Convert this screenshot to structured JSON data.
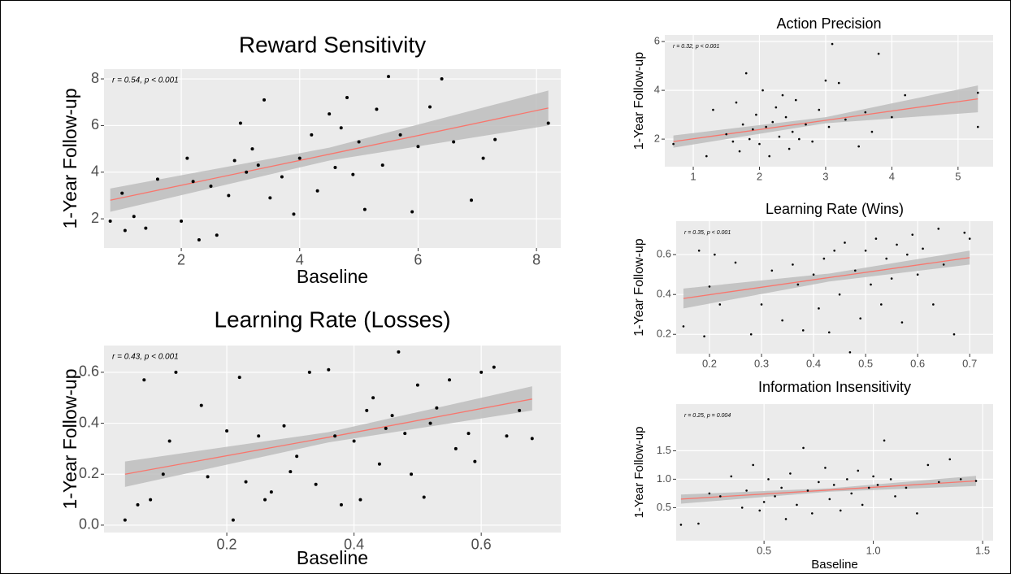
{
  "chart_data": [
    {
      "type": "scatter",
      "title": "Reward Sensitivity",
      "annotation": "r = 0.54, p < 0.001",
      "xlabel": "Baseline",
      "ylabel": "1-Year Follow-up",
      "x": [
        0.8,
        1.0,
        1.05,
        1.2,
        1.4,
        1.6,
        2.0,
        2.1,
        2.2,
        2.3,
        2.5,
        2.6,
        2.8,
        2.9,
        3.0,
        3.1,
        3.2,
        3.3,
        3.4,
        3.5,
        3.7,
        3.9,
        4.0,
        4.2,
        4.3,
        4.5,
        4.6,
        4.7,
        4.8,
        4.9,
        5.0,
        5.1,
        5.3,
        5.4,
        5.5,
        5.7,
        5.9,
        6.0,
        6.2,
        6.4,
        6.6,
        6.9,
        7.1,
        7.3,
        8.2
      ],
      "values": [
        1.9,
        3.1,
        1.5,
        2.1,
        1.6,
        3.7,
        1.9,
        4.6,
        3.6,
        1.1,
        3.4,
        1.3,
        3.0,
        4.5,
        6.1,
        4.0,
        5.0,
        4.3,
        7.1,
        2.9,
        3.8,
        2.2,
        4.6,
        5.6,
        3.2,
        6.5,
        4.2,
        5.9,
        7.2,
        3.9,
        5.3,
        2.4,
        6.7,
        4.3,
        8.1,
        5.6,
        2.3,
        5.1,
        6.8,
        8.0,
        5.3,
        2.8,
        4.6,
        5.4,
        6.1
      ],
      "fit": {
        "x": [
          0.8,
          4.5,
          8.2
        ],
        "values": [
          2.8,
          4.77,
          6.75
        ],
        "lower": [
          2.3,
          4.5,
          6.0
        ],
        "upper": [
          3.3,
          5.05,
          7.5
        ],
        "color": "#f8766d",
        "band_color": "#bdbdbd"
      },
      "color": "#000000",
      "xlim": [
        0.695,
        8.41
      ],
      "ylim": [
        0.75,
        8.42
      ],
      "xticks": [
        2,
        4,
        6,
        8
      ],
      "yticks": [
        2,
        4,
        6,
        8
      ],
      "grid": true
    },
    {
      "type": "scatter",
      "title": "Learning Rate (Losses)",
      "annotation": "r = 0.43, p < 0.001",
      "xlabel": "Baseline",
      "ylabel": "1-Year Follow-up",
      "x": [
        0.04,
        0.06,
        0.07,
        0.08,
        0.1,
        0.11,
        0.12,
        0.16,
        0.17,
        0.2,
        0.21,
        0.22,
        0.23,
        0.25,
        0.26,
        0.27,
        0.29,
        0.3,
        0.31,
        0.33,
        0.34,
        0.36,
        0.37,
        0.38,
        0.4,
        0.41,
        0.42,
        0.43,
        0.44,
        0.45,
        0.46,
        0.47,
        0.48,
        0.49,
        0.5,
        0.51,
        0.52,
        0.53,
        0.55,
        0.56,
        0.58,
        0.59,
        0.6,
        0.62,
        0.64,
        0.66,
        0.68
      ],
      "values": [
        0.02,
        0.08,
        0.57,
        0.1,
        0.2,
        0.33,
        0.6,
        0.47,
        0.19,
        0.37,
        0.02,
        0.58,
        0.17,
        0.35,
        0.1,
        0.13,
        0.39,
        0.21,
        0.27,
        0.6,
        0.16,
        0.61,
        0.35,
        0.08,
        0.33,
        0.1,
        0.45,
        0.5,
        0.24,
        0.38,
        0.43,
        0.68,
        0.36,
        0.2,
        0.55,
        0.11,
        0.4,
        0.46,
        0.57,
        0.3,
        0.36,
        0.25,
        0.6,
        0.62,
        0.35,
        0.45,
        0.34
      ],
      "fit": {
        "x": [
          0.04,
          0.36,
          0.68
        ],
        "values": [
          0.2,
          0.345,
          0.495
        ],
        "lower": [
          0.15,
          0.325,
          0.45
        ],
        "upper": [
          0.25,
          0.365,
          0.545
        ],
        "color": "#f8766d",
        "band_color": "#bdbdbd"
      },
      "color": "#000000",
      "xlim": [
        0.007,
        0.725
      ],
      "ylim": [
        -0.029,
        0.705
      ],
      "xticks": [
        0.2,
        0.4,
        0.6
      ],
      "yticks": [
        {
          "value": 0,
          "label": "0.0"
        },
        0.2,
        0.4,
        0.6
      ],
      "grid": true
    },
    {
      "type": "scatter",
      "title": "Action Precision",
      "annotation": "r = 0.32, p < 0.001",
      "ylabel": "1-Year Follow-up",
      "x": [
        0.7,
        1.2,
        1.3,
        1.5,
        1.6,
        1.65,
        1.7,
        1.75,
        1.8,
        1.85,
        1.9,
        1.95,
        2.0,
        2.05,
        2.1,
        2.15,
        2.2,
        2.25,
        2.3,
        2.35,
        2.4,
        2.45,
        2.5,
        2.55,
        2.6,
        2.7,
        2.8,
        2.9,
        3.0,
        3.05,
        3.1,
        3.2,
        3.3,
        3.5,
        3.6,
        3.7,
        3.8,
        4.0,
        4.2,
        5.3,
        5.3
      ],
      "values": [
        1.8,
        1.3,
        3.2,
        2.2,
        1.9,
        3.5,
        1.5,
        2.6,
        4.7,
        2.0,
        2.4,
        3.0,
        1.8,
        4.0,
        2.5,
        1.3,
        2.7,
        3.3,
        2.1,
        3.8,
        2.9,
        1.6,
        2.3,
        3.6,
        2.0,
        2.6,
        1.9,
        3.2,
        4.4,
        2.5,
        5.9,
        4.3,
        2.8,
        1.7,
        3.1,
        2.3,
        5.5,
        2.9,
        3.8,
        2.5,
        3.9
      ],
      "fit": {
        "x": [
          0.7,
          3.0,
          5.3
        ],
        "values": [
          1.9,
          2.77,
          3.65
        ],
        "lower": [
          1.65,
          2.65,
          3.1
        ],
        "upper": [
          2.15,
          2.9,
          4.2
        ],
        "color": "#f8766d",
        "band_color": "#bdbdbd"
      },
      "color": "#000000",
      "xlim": [
        0.57,
        5.53
      ],
      "ylim": [
        0.87,
        6.27
      ],
      "xticks": [
        1,
        2,
        3,
        4,
        5
      ],
      "yticks": [
        2,
        4,
        6
      ],
      "grid": true
    },
    {
      "type": "scatter",
      "title": "Learning Rate (Wins)",
      "annotation": "r = 0.35, p < 0.001",
      "ylabel": "1-Year Follow-up",
      "x": [
        0.15,
        0.18,
        0.19,
        0.2,
        0.21,
        0.22,
        0.25,
        0.28,
        0.3,
        0.32,
        0.34,
        0.36,
        0.37,
        0.38,
        0.4,
        0.41,
        0.42,
        0.43,
        0.44,
        0.45,
        0.46,
        0.47,
        0.48,
        0.49,
        0.5,
        0.51,
        0.52,
        0.53,
        0.54,
        0.55,
        0.56,
        0.57,
        0.58,
        0.59,
        0.6,
        0.61,
        0.63,
        0.64,
        0.65,
        0.67,
        0.69,
        0.7
      ],
      "values": [
        0.24,
        0.62,
        0.19,
        0.44,
        0.6,
        0.35,
        0.56,
        0.2,
        0.35,
        0.52,
        0.27,
        0.55,
        0.45,
        0.22,
        0.5,
        0.33,
        0.58,
        0.21,
        0.62,
        0.4,
        0.66,
        0.11,
        0.52,
        0.28,
        0.62,
        0.45,
        0.68,
        0.35,
        0.58,
        0.48,
        0.65,
        0.26,
        0.6,
        0.7,
        0.5,
        0.63,
        0.35,
        0.73,
        0.55,
        0.2,
        0.71,
        0.68
      ],
      "fit": {
        "x": [
          0.15,
          0.43,
          0.7
        ],
        "values": [
          0.38,
          0.485,
          0.585
        ],
        "lower": [
          0.33,
          0.465,
          0.55
        ],
        "upper": [
          0.43,
          0.505,
          0.62
        ],
        "color": "#f8766d",
        "band_color": "#bdbdbd"
      },
      "color": "#000000",
      "xlim": [
        0.136,
        0.745
      ],
      "ylim": [
        0.103,
        0.768
      ],
      "xticks": [
        0.2,
        0.3,
        0.4,
        0.5,
        0.6,
        0.7
      ],
      "yticks": [
        0.2,
        0.4,
        0.6
      ],
      "grid": true
    },
    {
      "type": "scatter",
      "title": "Information Insensitivity",
      "annotation": "r = 0.25, p = 0.004",
      "xlabel": "Baseline",
      "ylabel": "1-Year Follow-up",
      "x": [
        0.12,
        0.2,
        0.25,
        0.3,
        0.35,
        0.4,
        0.42,
        0.45,
        0.48,
        0.5,
        0.52,
        0.55,
        0.58,
        0.6,
        0.62,
        0.65,
        0.68,
        0.7,
        0.72,
        0.75,
        0.78,
        0.8,
        0.82,
        0.85,
        0.88,
        0.9,
        0.93,
        0.95,
        0.98,
        1.0,
        1.02,
        1.05,
        1.08,
        1.1,
        1.15,
        1.2,
        1.25,
        1.3,
        1.35,
        1.4,
        1.47
      ],
      "values": [
        0.2,
        0.22,
        0.75,
        0.7,
        1.05,
        0.5,
        0.8,
        1.25,
        0.45,
        0.6,
        1.0,
        0.7,
        0.85,
        0.3,
        1.1,
        0.55,
        1.55,
        0.8,
        0.4,
        0.95,
        1.2,
        0.65,
        0.9,
        0.45,
        1.0,
        0.75,
        1.15,
        0.55,
        0.85,
        1.05,
        0.9,
        1.68,
        1.0,
        0.7,
        0.85,
        0.4,
        1.25,
        0.95,
        1.35,
        1.0,
        0.97
      ],
      "fit": {
        "x": [
          0.12,
          0.8,
          1.47
        ],
        "values": [
          0.65,
          0.81,
          0.97
        ],
        "lower": [
          0.57,
          0.78,
          0.88
        ],
        "upper": [
          0.73,
          0.84,
          1.06
        ],
        "color": "#f8766d",
        "band_color": "#bdbdbd"
      },
      "color": "#000000",
      "xlim": [
        0.098,
        1.548
      ],
      "ylim": [
        -0.08,
        2.32
      ],
      "xticks": [
        0.5,
        {
          "value": 1,
          "label": "1.0"
        },
        1.5
      ],
      "yticks": [
        0.5,
        {
          "value": 1,
          "label": "1.0"
        },
        1.5
      ],
      "grid": true
    }
  ]
}
